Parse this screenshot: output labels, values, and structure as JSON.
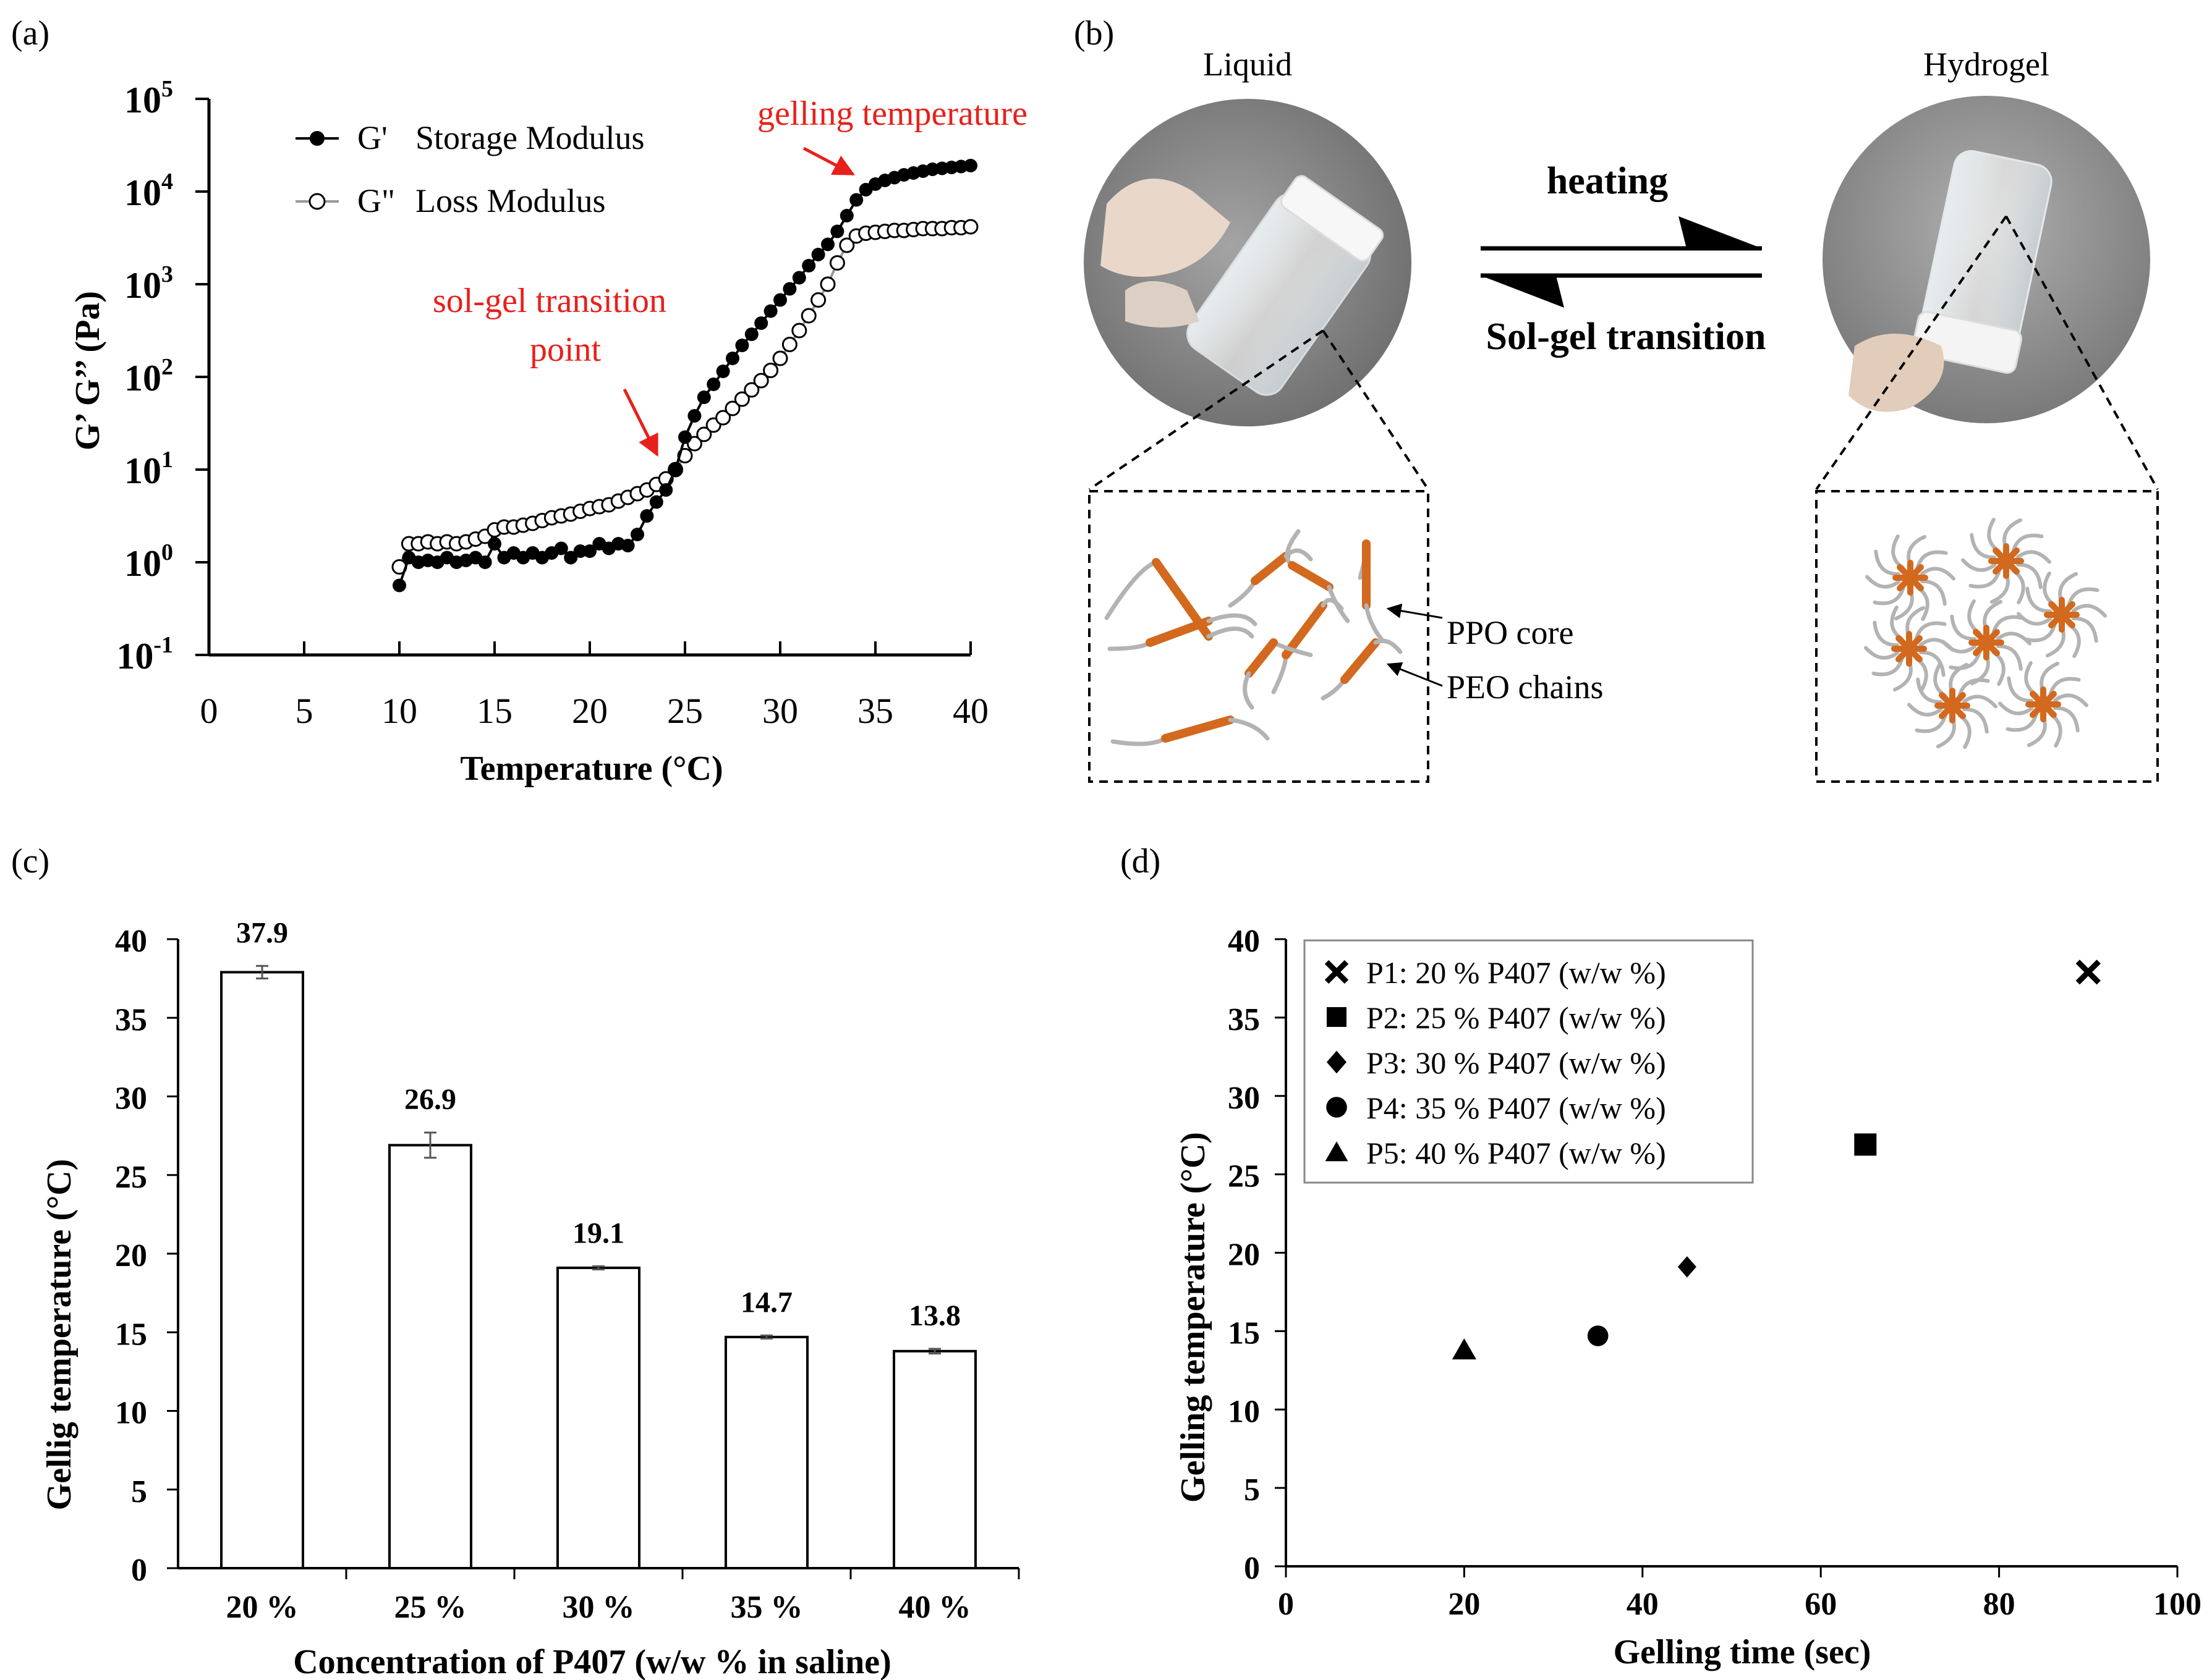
{
  "colors": {
    "annotation": "#e8201b",
    "ppo": "#d2691e",
    "peo": "#b3b3b3",
    "ink": "#000000",
    "photo_bg": "#8c8c8c"
  },
  "panel_a": {
    "label": "(a)",
    "chart_data": {
      "type": "scatter",
      "ylabel": "G’ G’’ (Pa)",
      "xlabel": "Temperature (°C)",
      "xlim": [
        0,
        40
      ],
      "ylim_log10": [
        -1,
        5
      ],
      "xticks": [
        "0",
        "5",
        "10",
        "15",
        "20",
        "25",
        "30",
        "35",
        "40"
      ],
      "yticks": [
        {
          "base": "10",
          "exp": "5"
        },
        {
          "base": "10",
          "exp": "4"
        },
        {
          "base": "10",
          "exp": "3"
        },
        {
          "base": "10",
          "exp": "2"
        },
        {
          "base": "10",
          "exp": "1"
        },
        {
          "base": "10",
          "exp": "0"
        },
        {
          "base": "10",
          "exp": "-1"
        }
      ],
      "legend": [
        {
          "symbol": "G'",
          "name": "Storage Modulus"
        },
        {
          "symbol": "G\"",
          "name": "Loss Modulus"
        }
      ],
      "annotations": {
        "gel_temp": "gelling temperature",
        "sol_gel_line1": "sol-gel transition",
        "sol_gel_line2": "point"
      },
      "series": [
        {
          "name": "G' Storage Modulus",
          "marker": "filled-circle",
          "x": [
            10,
            10.5,
            11,
            11.5,
            12,
            12.5,
            13,
            13.5,
            14,
            14.5,
            15,
            15.5,
            16,
            16.5,
            17,
            17.5,
            18,
            18.5,
            19,
            19.5,
            20,
            20.5,
            21,
            21.5,
            22,
            22.5,
            23,
            23.5,
            24,
            24.5,
            25,
            25.5,
            26,
            26.5,
            27,
            27.5,
            28,
            28.5,
            29,
            29.5,
            30,
            30.5,
            31,
            31.5,
            32,
            32.5,
            33,
            33.5,
            34,
            34.5,
            35,
            35.5,
            36,
            36.5,
            37,
            37.5,
            38,
            38.5,
            39,
            39.5,
            40
          ],
          "log10_y": [
            -0.25,
            0.05,
            0.0,
            0.02,
            0.0,
            0.05,
            0.0,
            0.02,
            0.05,
            0.0,
            0.2,
            0.05,
            0.1,
            0.05,
            0.1,
            0.05,
            0.1,
            0.15,
            0.05,
            0.12,
            0.12,
            0.2,
            0.15,
            0.2,
            0.18,
            0.3,
            0.5,
            0.65,
            0.78,
            1.0,
            1.35,
            1.58,
            1.78,
            1.92,
            2.06,
            2.2,
            2.34,
            2.46,
            2.58,
            2.71,
            2.83,
            2.95,
            3.07,
            3.2,
            3.32,
            3.43,
            3.57,
            3.74,
            3.91,
            4.02,
            4.08,
            4.12,
            4.15,
            4.18,
            4.2,
            4.22,
            4.24,
            4.25,
            4.26,
            4.27,
            4.28
          ]
        },
        {
          "name": "G\" Loss Modulus",
          "marker": "open-circle",
          "x": [
            10,
            10.5,
            11,
            11.5,
            12,
            12.5,
            13,
            13.5,
            14,
            14.5,
            15,
            15.5,
            16,
            16.5,
            17,
            17.5,
            18,
            18.5,
            19,
            19.5,
            20,
            20.5,
            21,
            21.5,
            22,
            22.5,
            23,
            23.5,
            24,
            24.5,
            25,
            25.5,
            26,
            26.5,
            27,
            27.5,
            28,
            28.5,
            29,
            29.5,
            30,
            30.5,
            31,
            31.5,
            32,
            32.5,
            33,
            33.5,
            34,
            34.5,
            35,
            35.5,
            36,
            36.5,
            37,
            37.5,
            38,
            38.5,
            39,
            39.5,
            40
          ],
          "log10_y": [
            -0.05,
            0.2,
            0.2,
            0.22,
            0.2,
            0.22,
            0.2,
            0.22,
            0.25,
            0.28,
            0.35,
            0.38,
            0.38,
            0.4,
            0.42,
            0.45,
            0.48,
            0.5,
            0.52,
            0.55,
            0.58,
            0.6,
            0.62,
            0.66,
            0.7,
            0.74,
            0.78,
            0.84,
            0.9,
            1.0,
            1.15,
            1.28,
            1.38,
            1.48,
            1.56,
            1.66,
            1.76,
            1.86,
            1.96,
            2.07,
            2.2,
            2.35,
            2.5,
            2.66,
            2.83,
            3.0,
            3.23,
            3.42,
            3.52,
            3.55,
            3.56,
            3.57,
            3.58,
            3.58,
            3.59,
            3.6,
            3.6,
            3.6,
            3.61,
            3.61,
            3.62
          ]
        }
      ]
    }
  },
  "panel_b": {
    "label": "(b)",
    "liquid_label": "Liquid",
    "hydrogel_label": "Hydrogel",
    "arrow_top": "heating",
    "arrow_bottom": "Sol-gel transition",
    "ppo_label": "PPO core",
    "peo_label": "PEO chains"
  },
  "panel_c": {
    "label": "(c)",
    "chart_data": {
      "type": "bar",
      "categories": [
        "20 %",
        "25 %",
        "30 %",
        "35 %",
        "40 %"
      ],
      "values": [
        37.9,
        26.9,
        19.1,
        14.7,
        13.8
      ],
      "data_labels": [
        "37.9",
        "26.9",
        "19.1",
        "14.7",
        "13.8"
      ],
      "errors": [
        0.4,
        0.8,
        0.1,
        0.1,
        0.15
      ],
      "xlabel": "Concentration of P407 (w/w % in saline)",
      "ylabel": "Gellig temperature (°C)",
      "ylim": [
        0,
        40
      ],
      "yticks": [
        "0",
        "5",
        "10",
        "15",
        "20",
        "25",
        "30",
        "35",
        "40"
      ]
    }
  },
  "panel_d": {
    "label": "(d)",
    "chart_data": {
      "type": "scatter",
      "xlabel": "Gelling time (sec)",
      "ylabel": "Gelling temperature (°C)",
      "xlim": [
        0,
        100
      ],
      "ylim": [
        0,
        40
      ],
      "xticks": [
        "0",
        "20",
        "40",
        "60",
        "80",
        "100"
      ],
      "yticks": [
        "0",
        "5",
        "10",
        "15",
        "20",
        "25",
        "30",
        "35",
        "40"
      ],
      "series": [
        {
          "name": "P1: 20 % P407 (w/w %)",
          "marker": "x",
          "x": 90,
          "y": 37.9
        },
        {
          "name": "P2: 25 % P407 (w/w %)",
          "marker": "square",
          "x": 65,
          "y": 26.9
        },
        {
          "name": "P3: 30 % P407 (w/w %)",
          "marker": "diamond",
          "x": 45,
          "y": 19.1
        },
        {
          "name": "P4: 35 % P407 (w/w %)",
          "marker": "circle",
          "x": 35,
          "y": 14.7
        },
        {
          "name": "P5: 40 % P407 (w/w %)",
          "marker": "triangle",
          "x": 20,
          "y": 13.8
        }
      ]
    }
  }
}
